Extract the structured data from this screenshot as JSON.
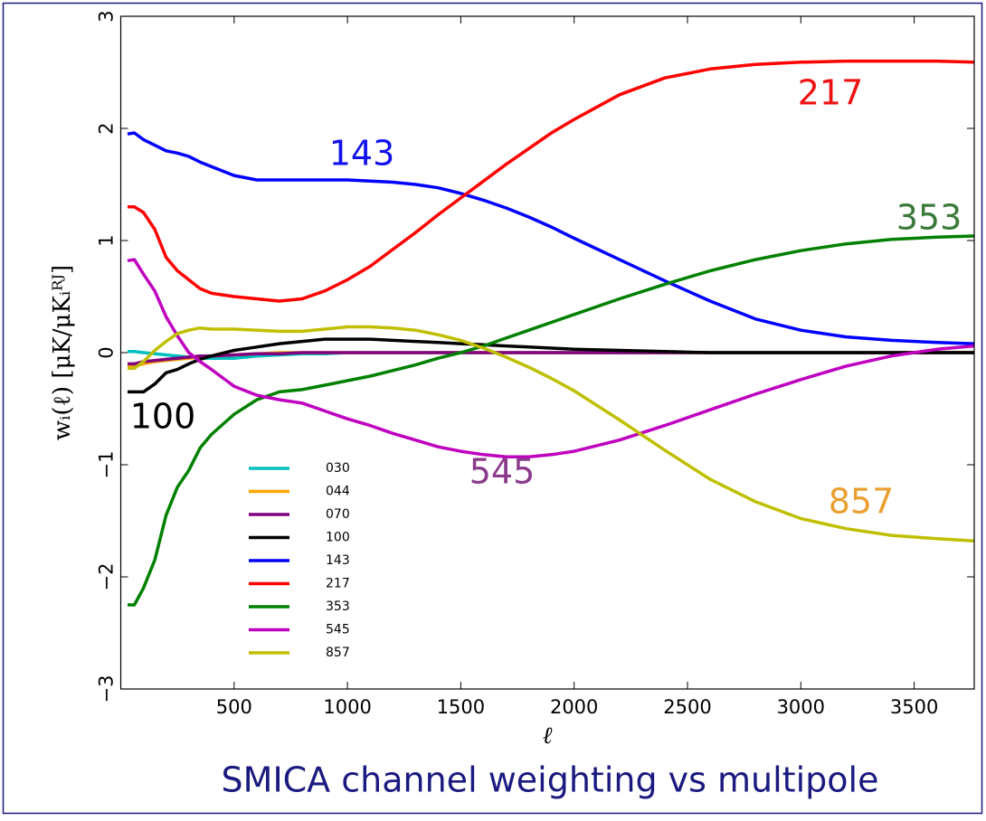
{
  "chart_data": {
    "type": "line",
    "title": "SMICA channel weighting vs multipole",
    "xlabel": "ℓ",
    "ylabel": "wᵢ(ℓ) [μK/μKᵢᴿᴶ]",
    "x": [
      30,
      60,
      100,
      150,
      200,
      250,
      300,
      350,
      400,
      500,
      600,
      700,
      800,
      900,
      1000,
      1100,
      1200,
      1300,
      1400,
      1500,
      1600,
      1700,
      1800,
      1900,
      2000,
      2200,
      2400,
      2600,
      2800,
      3000,
      3200,
      3400,
      3600,
      3765
    ],
    "xlim": [
      0,
      3765
    ],
    "xticks": [
      500,
      1000,
      1500,
      2000,
      2500,
      3000,
      3500
    ],
    "ylim": [
      -3,
      3
    ],
    "yticks": [
      {
        "value": -3,
        "label": "−3"
      },
      {
        "value": -2,
        "label": "−2"
      },
      {
        "value": -1,
        "label": "−1"
      },
      0,
      1,
      2,
      3
    ],
    "legend": "lower left",
    "series": [
      {
        "name": "030",
        "color": "#00bfbf",
        "values": [
          0.01,
          0.01,
          0,
          -0.01,
          -0.02,
          -0.03,
          -0.04,
          -0.05,
          -0.05,
          -0.05,
          -0.03,
          -0.02,
          -0.01,
          -0.01,
          0,
          0,
          0,
          0,
          0,
          0,
          0,
          0,
          0,
          0,
          0,
          0,
          0,
          0,
          0,
          0,
          0,
          0,
          0,
          0
        ]
      },
      {
        "name": "044",
        "color": "#ffa500",
        "values": [
          -0.12,
          -0.12,
          -0.1,
          -0.08,
          -0.07,
          -0.06,
          -0.05,
          -0.04,
          -0.03,
          -0.02,
          -0.01,
          0,
          0,
          0,
          0,
          0,
          0,
          0,
          0,
          0,
          0,
          0,
          0,
          0,
          0,
          0,
          0,
          0,
          0,
          0,
          0,
          0,
          0,
          0
        ]
      },
      {
        "name": "070",
        "color": "#800080",
        "values": [
          -0.1,
          -0.1,
          -0.08,
          -0.07,
          -0.06,
          -0.05,
          -0.04,
          -0.03,
          -0.03,
          -0.02,
          -0.01,
          -0.01,
          0,
          0,
          0,
          0,
          0,
          0,
          0,
          0,
          0,
          0,
          0,
          0,
          0,
          0,
          0,
          0,
          0,
          0,
          0,
          0,
          0,
          0
        ]
      },
      {
        "name": "100",
        "color": "#000000",
        "values": [
          -0.35,
          -0.35,
          -0.35,
          -0.28,
          -0.18,
          -0.15,
          -0.1,
          -0.06,
          -0.03,
          0.02,
          0.05,
          0.08,
          0.1,
          0.12,
          0.12,
          0.12,
          0.11,
          0.1,
          0.09,
          0.08,
          0.07,
          0.06,
          0.05,
          0.04,
          0.03,
          0.02,
          0.01,
          0,
          0,
          0,
          0,
          0,
          0,
          0
        ]
      },
      {
        "name": "143",
        "color": "#0000ff",
        "values": [
          1.95,
          1.96,
          1.9,
          1.85,
          1.8,
          1.78,
          1.75,
          1.7,
          1.66,
          1.58,
          1.54,
          1.54,
          1.54,
          1.54,
          1.54,
          1.53,
          1.52,
          1.5,
          1.47,
          1.42,
          1.36,
          1.29,
          1.21,
          1.12,
          1.02,
          0.83,
          0.64,
          0.46,
          0.3,
          0.2,
          0.14,
          0.11,
          0.09,
          0.08
        ]
      },
      {
        "name": "217",
        "color": "#ff0000",
        "values": [
          1.3,
          1.3,
          1.25,
          1.1,
          0.85,
          0.73,
          0.65,
          0.57,
          0.53,
          0.5,
          0.48,
          0.46,
          0.48,
          0.55,
          0.65,
          0.77,
          0.92,
          1.07,
          1.23,
          1.38,
          1.53,
          1.68,
          1.82,
          1.96,
          2.08,
          2.3,
          2.45,
          2.53,
          2.57,
          2.59,
          2.6,
          2.6,
          2.6,
          2.59
        ]
      },
      {
        "name": "353",
        "color": "#008000",
        "values": [
          -2.25,
          -2.25,
          -2.1,
          -1.85,
          -1.45,
          -1.2,
          -1.05,
          -0.85,
          -0.73,
          -0.55,
          -0.42,
          -0.35,
          -0.33,
          -0.29,
          -0.25,
          -0.21,
          -0.16,
          -0.11,
          -0.05,
          0,
          0.06,
          0.13,
          0.2,
          0.27,
          0.34,
          0.48,
          0.61,
          0.73,
          0.83,
          0.91,
          0.97,
          1.01,
          1.03,
          1.04
        ]
      },
      {
        "name": "545",
        "color": "#bf00bf",
        "values": [
          0.82,
          0.83,
          0.7,
          0.55,
          0.32,
          0.15,
          0,
          -0.08,
          -0.15,
          -0.3,
          -0.38,
          -0.42,
          -0.45,
          -0.52,
          -0.59,
          -0.65,
          -0.72,
          -0.78,
          -0.84,
          -0.88,
          -0.91,
          -0.93,
          -0.93,
          -0.91,
          -0.88,
          -0.78,
          -0.65,
          -0.51,
          -0.37,
          -0.24,
          -0.12,
          -0.03,
          0.03,
          0.06
        ]
      },
      {
        "name": "857",
        "color": "#bfbf00",
        "values": [
          -0.14,
          -0.14,
          -0.08,
          0.02,
          0.1,
          0.17,
          0.2,
          0.22,
          0.21,
          0.21,
          0.2,
          0.19,
          0.19,
          0.21,
          0.23,
          0.23,
          0.22,
          0.2,
          0.16,
          0.11,
          0.04,
          -0.04,
          -0.13,
          -0.23,
          -0.34,
          -0.6,
          -0.87,
          -1.13,
          -1.33,
          -1.48,
          -1.57,
          -1.63,
          -1.66,
          -1.68
        ]
      }
    ],
    "annotations": [
      {
        "text": "217",
        "color": "#ee1111"
      },
      {
        "text": "143",
        "color": "#1111ee"
      },
      {
        "text": "353",
        "color": "#3a7a3a"
      },
      {
        "text": "100",
        "color": "#000000"
      },
      {
        "text": "545",
        "color": "#8b3a8b"
      },
      {
        "text": "857",
        "color": "#eaa030"
      }
    ]
  }
}
